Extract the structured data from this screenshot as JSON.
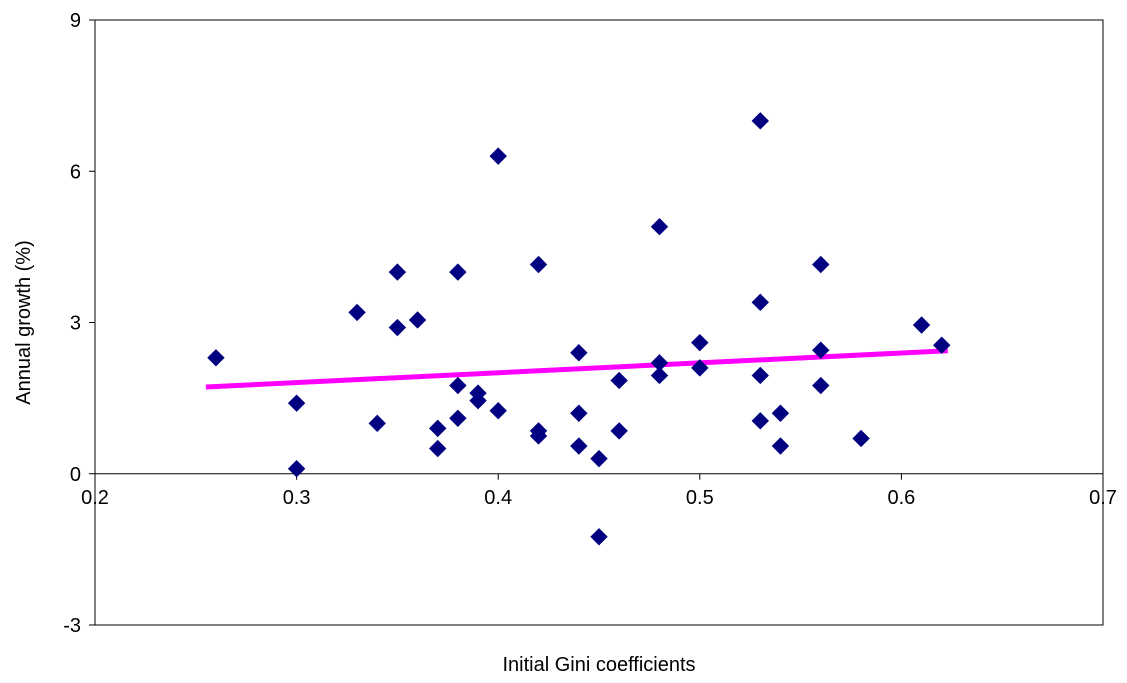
{
  "chart_data": {
    "type": "scatter",
    "title": "",
    "xlabel": "Initial Gini coefficients",
    "ylabel": "Annual growth (%)",
    "xlim": [
      0.2,
      0.7
    ],
    "ylim": [
      -3,
      9
    ],
    "x_ticks": [
      0.2,
      0.3,
      0.4,
      0.5,
      0.6,
      0.7
    ],
    "y_ticks": [
      -3,
      0,
      3,
      6,
      9
    ],
    "x_tick_labels": [
      "0.2",
      "0.3",
      "0.4",
      "0.5",
      "0.6",
      "0.7"
    ],
    "y_tick_labels": [
      "-3",
      "0",
      "3",
      "6",
      "9"
    ],
    "grid": false,
    "legend": "none",
    "marker": "diamond",
    "colors": {
      "points": "#000080",
      "trendline": "#ff00ff"
    },
    "points": [
      [
        0.26,
        2.3
      ],
      [
        0.3,
        1.4
      ],
      [
        0.3,
        0.1
      ],
      [
        0.33,
        3.2
      ],
      [
        0.34,
        1.0
      ],
      [
        0.35,
        4.0
      ],
      [
        0.35,
        2.9
      ],
      [
        0.36,
        3.05
      ],
      [
        0.37,
        0.9
      ],
      [
        0.37,
        0.5
      ],
      [
        0.38,
        4.0
      ],
      [
        0.38,
        1.75
      ],
      [
        0.38,
        1.1
      ],
      [
        0.39,
        1.6
      ],
      [
        0.39,
        1.45
      ],
      [
        0.4,
        6.3
      ],
      [
        0.4,
        1.25
      ],
      [
        0.42,
        4.15
      ],
      [
        0.42,
        0.85
      ],
      [
        0.42,
        0.75
      ],
      [
        0.44,
        2.4
      ],
      [
        0.44,
        1.2
      ],
      [
        0.44,
        0.55
      ],
      [
        0.45,
        0.3
      ],
      [
        0.45,
        -1.25
      ],
      [
        0.46,
        1.85
      ],
      [
        0.46,
        0.85
      ],
      [
        0.48,
        4.9
      ],
      [
        0.48,
        2.2
      ],
      [
        0.48,
        1.95
      ],
      [
        0.5,
        2.6
      ],
      [
        0.5,
        2.1
      ],
      [
        0.53,
        7.0
      ],
      [
        0.53,
        3.4
      ],
      [
        0.53,
        1.95
      ],
      [
        0.53,
        1.05
      ],
      [
        0.54,
        1.2
      ],
      [
        0.54,
        0.55
      ],
      [
        0.56,
        4.15
      ],
      [
        0.56,
        2.45
      ],
      [
        0.56,
        1.75
      ],
      [
        0.58,
        0.7
      ],
      [
        0.61,
        2.95
      ],
      [
        0.62,
        2.55
      ]
    ],
    "trendline": {
      "x": [
        0.255,
        0.623
      ],
      "y": [
        1.72,
        2.44
      ]
    }
  }
}
